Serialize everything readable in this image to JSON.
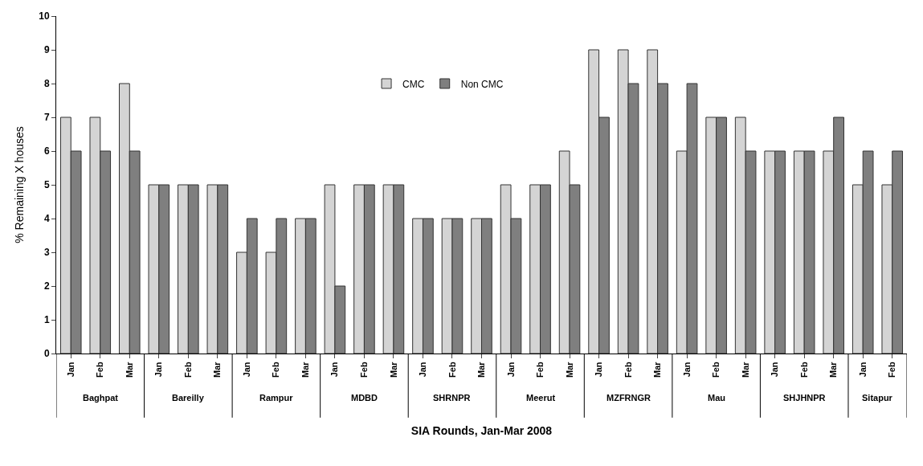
{
  "chart_data": {
    "type": "bar",
    "xlabel": "SIA Rounds, Jan-Mar 2008",
    "ylabel": "% Remaining X houses",
    "categories": [
      "Jan",
      "Feb",
      "Mar",
      "Jan",
      "Feb",
      "Mar",
      "Jan",
      "Feb",
      "Mar",
      "Jan",
      "Feb",
      "Mar",
      "Jan",
      "Feb",
      "Mar",
      "Jan",
      "Feb",
      "Mar",
      "Jan",
      "Feb",
      "Mar",
      "Jan",
      "Feb",
      "Mar",
      "Jan",
      "Feb",
      "Mar",
      "Jan",
      "Feb"
    ],
    "series": [
      {
        "name": "CMC",
        "color": "#d4d4d4",
        "values": [
          7,
          7,
          8,
          5,
          5,
          5,
          3,
          3,
          4,
          5,
          5,
          5,
          4,
          4,
          4,
          5,
          5,
          6,
          9,
          9,
          9,
          6,
          7,
          7,
          6,
          6,
          6,
          5,
          5
        ]
      },
      {
        "name": "Non CMC",
        "color": "#7f7f7f",
        "values": [
          6,
          6,
          6,
          5,
          5,
          5,
          4,
          4,
          4,
          2,
          5,
          5,
          4,
          4,
          4,
          4,
          5,
          5,
          7,
          8,
          8,
          8,
          7,
          6,
          6,
          6,
          7,
          6,
          6
        ]
      }
    ],
    "annotations": [
      "Baghpat",
      "Bareilly",
      "Rampur",
      "MDBD",
      "SHRNPR",
      "Meerut",
      "MZFRNGR",
      "Mau",
      "SHJHNPR",
      "Sitapur"
    ],
    "ylim": [
      0,
      10
    ],
    "yticks": [
      0,
      1,
      2,
      3,
      4,
      5,
      6,
      7,
      8,
      9,
      10
    ],
    "legend": "top"
  }
}
